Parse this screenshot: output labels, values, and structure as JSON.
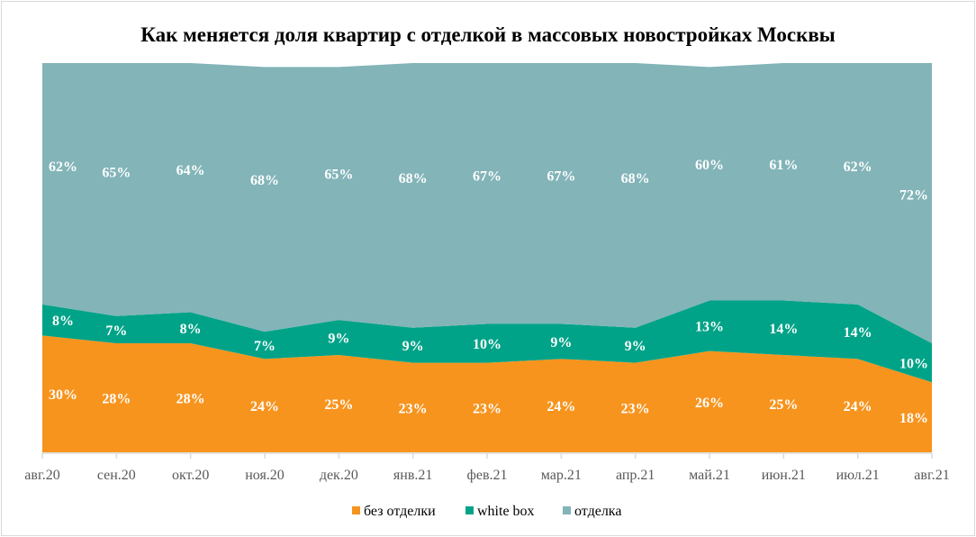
{
  "chart_data": {
    "type": "area",
    "stacked": "percent",
    "title": "Как меняется доля квартир с отделкой в массовых новостройках  Москвы",
    "categories": [
      "авг.20",
      "сен.20",
      "окт.20",
      "ноя.20",
      "дек.20",
      "янв.21",
      "фев.21",
      "мар.21",
      "апр.21",
      "май.21",
      "июн.21",
      "июл.21",
      "авг.21"
    ],
    "series": [
      {
        "name": "без отделки",
        "color": "#F7941E",
        "values": [
          30,
          28,
          28,
          24,
          25,
          23,
          23,
          24,
          23,
          26,
          25,
          24,
          18
        ]
      },
      {
        "name": "white box",
        "color": "#00A388",
        "values": [
          8,
          7,
          8,
          7,
          9,
          9,
          10,
          9,
          9,
          13,
          14,
          14,
          10
        ]
      },
      {
        "name": "отделка",
        "color": "#82B4B8",
        "values": [
          62,
          65,
          64,
          68,
          65,
          68,
          67,
          67,
          68,
          60,
          61,
          62,
          72
        ]
      }
    ],
    "ylim": [
      0,
      100
    ],
    "legend_position": "bottom",
    "grid": false
  }
}
